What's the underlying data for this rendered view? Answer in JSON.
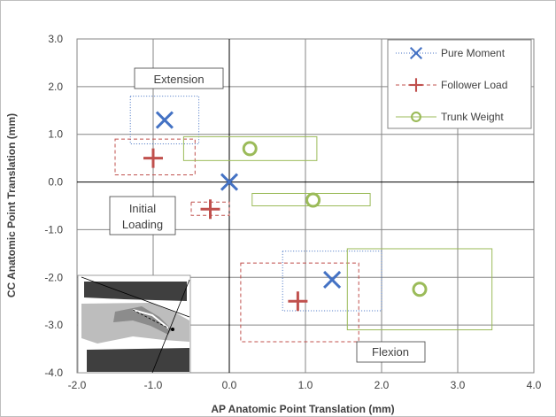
{
  "chart_data": {
    "type": "scatter",
    "xlabel": "AP Anatomic Point Translation (mm)",
    "ylabel": "CC Anatomic Point Translation (mm)",
    "xlim": [
      -2.0,
      4.0
    ],
    "ylim": [
      -4.0,
      3.0
    ],
    "x_ticks": [
      {
        "value": -2.0,
        "label": "-2.0"
      },
      {
        "value": -1.0,
        "label": "-1.0"
      },
      {
        "value": 0.0,
        "label": "0.0"
      },
      {
        "value": 1.0,
        "label": "1.0"
      },
      {
        "value": 2.0,
        "label": "2.0"
      },
      {
        "value": 3.0,
        "label": "3.0"
      },
      {
        "value": 4.0,
        "label": "4.0"
      }
    ],
    "y_ticks": [
      {
        "value": 3.0,
        "label": "3.0"
      },
      {
        "value": 2.0,
        "label": "2.0"
      },
      {
        "value": 1.0,
        "label": "1.0"
      },
      {
        "value": 0.0,
        "label": "0.0"
      },
      {
        "value": -1.0,
        "label": "-1.0"
      },
      {
        "value": -2.0,
        "label": "-2.0"
      },
      {
        "value": -3.0,
        "label": "-3.0"
      },
      {
        "value": -4.0,
        "label": "-4.0"
      }
    ],
    "grid": true,
    "legend_position": "top-right",
    "series": [
      {
        "name": "Pure Moment",
        "marker": "x",
        "color": "#4472C4",
        "points": [
          {
            "x": -0.85,
            "y": 1.3,
            "x_range": [
              -1.3,
              -0.4
            ],
            "y_range": [
              0.8,
              1.8
            ]
          },
          {
            "x": 0.0,
            "y": 0.0
          },
          {
            "x": 1.35,
            "y": -2.05,
            "x_range": [
              0.7,
              2.0
            ],
            "y_range": [
              -2.7,
              -1.45
            ]
          }
        ]
      },
      {
        "name": "Follower Load",
        "marker": "plus",
        "color": "#C0504D",
        "points": [
          {
            "x": -1.0,
            "y": 0.5,
            "x_range": [
              -1.5,
              -0.45
            ],
            "y_range": [
              0.15,
              0.9
            ]
          },
          {
            "x": -0.25,
            "y": -0.57,
            "x_range": [
              -0.5,
              -0.0
            ],
            "y_range": [
              -0.7,
              -0.42
            ]
          },
          {
            "x": 0.9,
            "y": -2.5,
            "x_range": [
              0.15,
              1.7
            ],
            "y_range": [
              -3.35,
              -1.7
            ]
          }
        ]
      },
      {
        "name": "Trunk Weight",
        "marker": "circle",
        "color": "#9BBB59",
        "points": [
          {
            "x": 0.27,
            "y": 0.7,
            "x_range": [
              -0.6,
              1.15
            ],
            "y_range": [
              0.45,
              0.95
            ]
          },
          {
            "x": 1.1,
            "y": -0.38,
            "x_range": [
              0.3,
              1.85
            ],
            "y_range": [
              -0.5,
              -0.24
            ]
          },
          {
            "x": 2.5,
            "y": -2.25,
            "x_range": [
              1.55,
              3.45
            ],
            "y_range": [
              -3.1,
              -1.4
            ]
          }
        ]
      }
    ],
    "annotations": [
      {
        "id": "extension",
        "text": "Extension"
      },
      {
        "id": "initial-line1",
        "text": "Initial"
      },
      {
        "id": "initial-line2",
        "text": "Loading"
      },
      {
        "id": "flexion",
        "text": "Flexion"
      }
    ]
  }
}
